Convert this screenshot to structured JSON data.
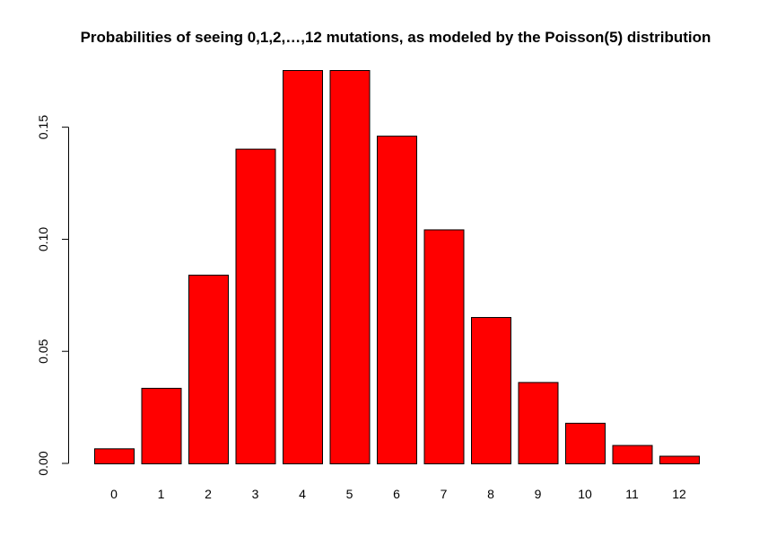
{
  "chart_data": {
    "type": "bar",
    "title": "Probabilities of seeing 0,1,2,…,12 mutations, as modeled by the Poisson(5) distribution",
    "xlabel": "",
    "ylabel": "",
    "categories": [
      "0",
      "1",
      "2",
      "3",
      "4",
      "5",
      "6",
      "7",
      "8",
      "9",
      "10",
      "11",
      "12"
    ],
    "values": [
      0.0067,
      0.0337,
      0.0842,
      0.1404,
      0.1755,
      0.1755,
      0.1462,
      0.1044,
      0.0653,
      0.0363,
      0.0181,
      0.0082,
      0.0034
    ],
    "ylim": [
      0,
      0.1755
    ],
    "yticks": [
      0,
      0.05,
      0.1,
      0.15
    ],
    "ytick_labels": [
      "0.00",
      "0.05",
      "0.10",
      "0.15"
    ],
    "bar_color": "#ff0000",
    "bar_border_color": "#000000",
    "grid": false,
    "legend": "none"
  }
}
